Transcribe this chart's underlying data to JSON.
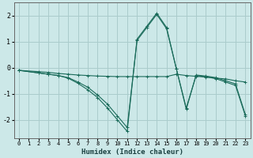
{
  "xlabel": "Humidex (Indice chaleur)",
  "background_color": "#cce8e8",
  "grid_color": "#aacccc",
  "line_color": "#1a6b5a",
  "xlim": [
    -0.5,
    23.5
  ],
  "ylim": [
    -2.7,
    2.5
  ],
  "yticks": [
    -2,
    -1,
    0,
    1,
    2
  ],
  "xticks": [
    0,
    1,
    2,
    3,
    4,
    5,
    6,
    7,
    8,
    9,
    10,
    11,
    12,
    13,
    14,
    15,
    16,
    17,
    18,
    19,
    20,
    21,
    22,
    23
  ],
  "series1_x": [
    0,
    2,
    3,
    4,
    5,
    6,
    7,
    8,
    9,
    10,
    11,
    12,
    13,
    14,
    15,
    16,
    17,
    18,
    19,
    20,
    21,
    22,
    23
  ],
  "series1_y": [
    -0.1,
    -0.15,
    -0.18,
    -0.22,
    -0.25,
    -0.28,
    -0.3,
    -0.32,
    -0.33,
    -0.34,
    -0.34,
    -0.34,
    -0.34,
    -0.34,
    -0.34,
    -0.25,
    -0.3,
    -0.33,
    -0.36,
    -0.4,
    -0.43,
    -0.5,
    -0.55
  ],
  "series2_x": [
    0,
    2,
    3,
    4,
    5,
    6,
    7,
    8,
    9,
    10,
    11,
    12,
    13,
    14,
    15,
    16,
    17,
    18,
    19,
    20,
    21,
    22,
    23
  ],
  "series2_y": [
    -0.1,
    -0.2,
    -0.25,
    -0.3,
    -0.4,
    -0.6,
    -0.85,
    -1.15,
    -1.55,
    -2.0,
    -2.45,
    1.1,
    1.6,
    2.1,
    1.55,
    -0.05,
    -1.55,
    -0.3,
    -0.35,
    -0.42,
    -0.55,
    -0.68,
    -1.85
  ],
  "series3_x": [
    0,
    2,
    3,
    4,
    5,
    6,
    7,
    8,
    9,
    10,
    11,
    12,
    13,
    14,
    15,
    16,
    17,
    18,
    19,
    20,
    21,
    22,
    23
  ],
  "series3_y": [
    -0.1,
    -0.2,
    -0.25,
    -0.3,
    -0.38,
    -0.55,
    -0.75,
    -1.05,
    -1.4,
    -1.85,
    -2.3,
    1.05,
    1.55,
    2.05,
    1.5,
    -0.05,
    -1.6,
    -0.28,
    -0.32,
    -0.38,
    -0.5,
    -0.62,
    -1.8
  ]
}
